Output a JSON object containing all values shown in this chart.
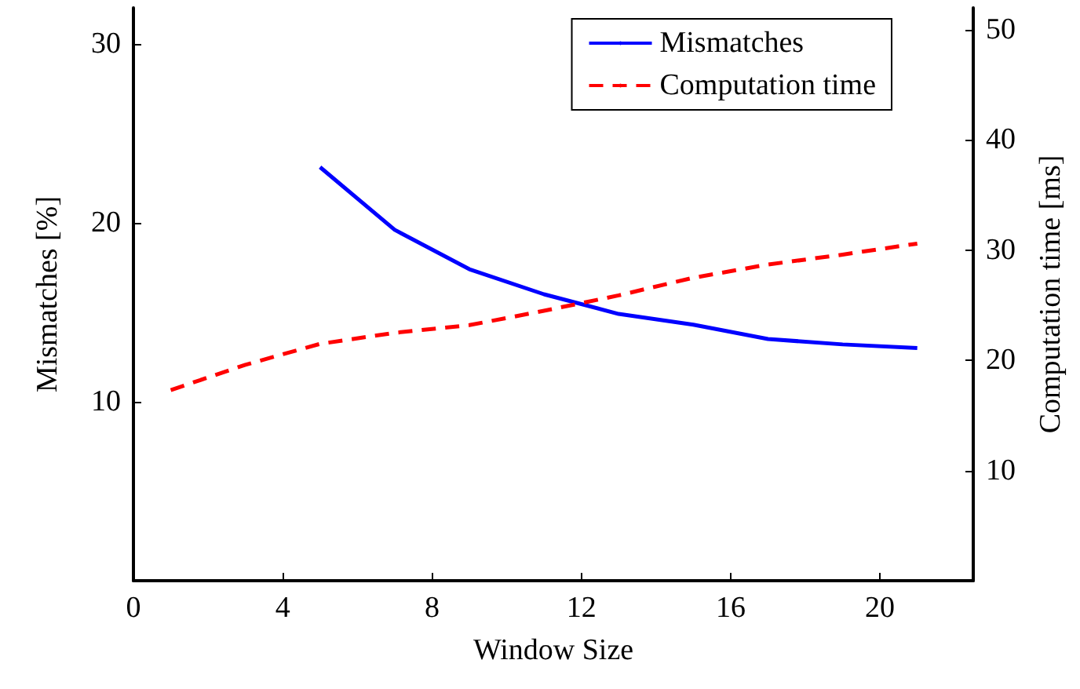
{
  "chart_data": {
    "type": "line",
    "xlabel": "Window Size",
    "ylabel": "Mismatches [%]",
    "y2label": "Computation time [ms]",
    "xlim": [
      0,
      22.5
    ],
    "xticks": [
      0,
      4,
      8,
      12,
      16,
      20
    ],
    "ylim": [
      0,
      32
    ],
    "yticks": [
      10,
      20,
      30
    ],
    "y2lim": [
      0,
      52
    ],
    "y2ticks": [
      10,
      20,
      30,
      40,
      50
    ],
    "grid": false,
    "legend": "top right",
    "marker": "none",
    "series": [
      {
        "name": "Mismatches",
        "color": "#0000ff",
        "line_style": "solid",
        "x": [
          5,
          7,
          9,
          11,
          13,
          15,
          17,
          19,
          21
        ],
        "values": [
          23.1,
          19.6,
          17.4,
          16.0,
          14.9,
          14.3,
          13.5,
          13.2,
          13.0
        ]
      },
      {
        "name": "Computation time",
        "color": "#ff0000",
        "line_style": "dashed",
        "axis": "y2",
        "x": [
          1,
          3,
          5,
          7,
          9,
          11,
          13,
          15,
          17,
          19,
          21
        ],
        "values": [
          17.3,
          19.6,
          21.5,
          22.5,
          23.2,
          24.5,
          25.9,
          27.5,
          28.7,
          29.6,
          30.6
        ]
      }
    ]
  }
}
